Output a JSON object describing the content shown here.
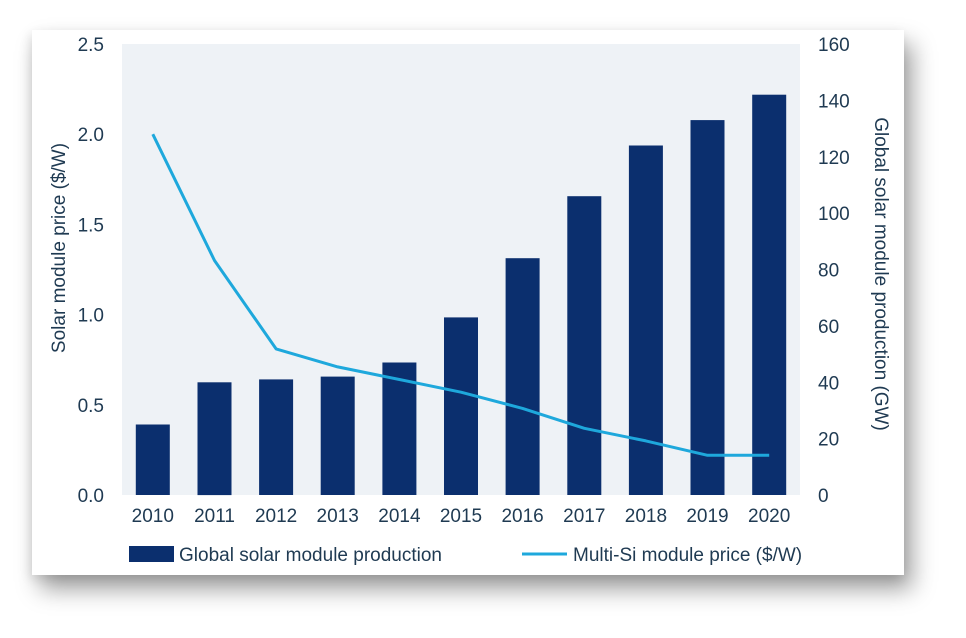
{
  "chart_data": {
    "type": "bar",
    "categories": [
      "2010",
      "2011",
      "2012",
      "2013",
      "2014",
      "2015",
      "2016",
      "2017",
      "2018",
      "2019",
      "2020"
    ],
    "series": [
      {
        "name": "Global solar module production",
        "type": "bar",
        "axis": "right",
        "color": "#0b2f6e",
        "values": [
          25,
          40,
          41,
          42,
          47,
          63,
          84,
          106,
          124,
          133,
          142
        ]
      },
      {
        "name": "Multi-Si module price ($/W)",
        "type": "line",
        "axis": "left",
        "color": "#1ea8dc",
        "values": [
          2.0,
          1.3,
          0.81,
          0.71,
          0.64,
          0.57,
          0.48,
          0.37,
          0.3,
          0.22,
          0.22
        ]
      }
    ],
    "ylabel_left": "Solar module price ($/W)",
    "ylabel_right": "Global solar module production (GW)",
    "ylim_left": [
      0,
      2.5
    ],
    "ylim_right": [
      0,
      160
    ],
    "yticks_left": [
      "0.0",
      "0.5",
      "1.0",
      "1.5",
      "2.0",
      "2.5"
    ],
    "yticks_right": [
      "0",
      "20",
      "40",
      "60",
      "80",
      "100",
      "120",
      "140",
      "160"
    ],
    "plot_background": "#eef2f6",
    "grid": false,
    "legend_position": "bottom"
  }
}
